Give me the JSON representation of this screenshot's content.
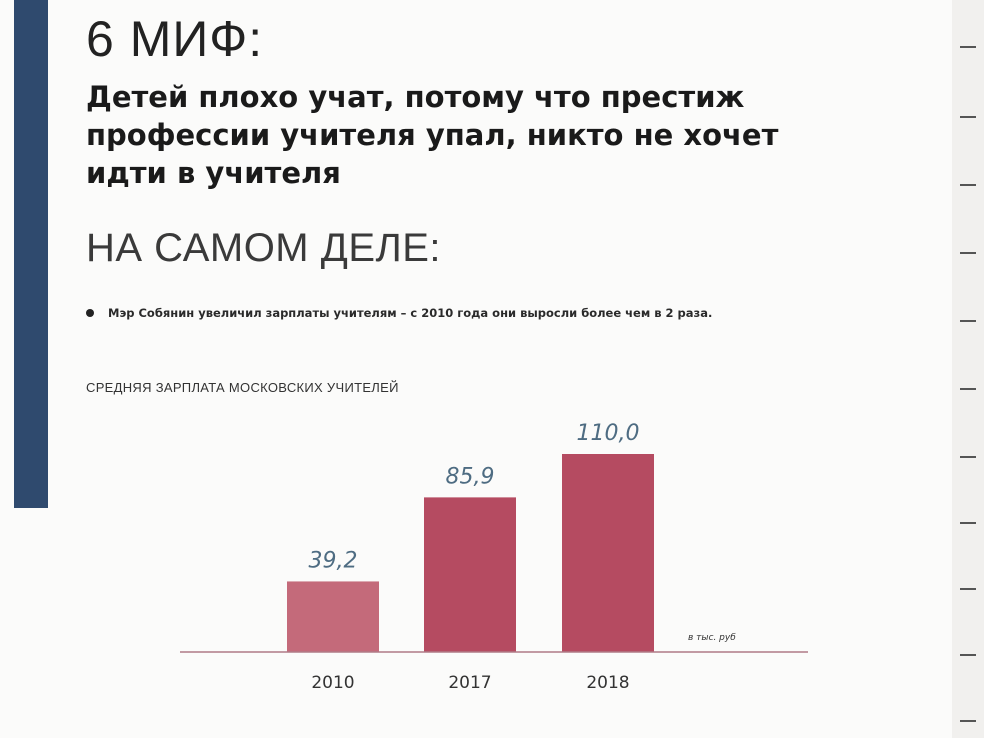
{
  "slide": {
    "myth_title": "6 МИФ:",
    "myth_text": "Детей плохо учат, потому что престиж профессии учителя упал, никто не хочет идти в учителя",
    "reality_heading": "НА САМОМ ДЕЛЕ:",
    "bullet": "Мэр Собянин увеличил зарплаты учителям – с 2010 года они выросли более чем в 2 раза."
  },
  "colors": {
    "side_bar": "#2f4a6e",
    "bar_light": "#c46a7a",
    "bar_dark": "#b54b61",
    "value_label": "#4e6c82",
    "baseline": "#b07a86"
  },
  "chart_data": {
    "type": "bar",
    "title": "СРЕДНЯЯ ЗАРПЛАТА МОСКОВСКИХ УЧИТЕЛЕЙ",
    "categories": [
      "2010",
      "2017",
      "2018"
    ],
    "values": [
      39.2,
      85.9,
      110.0
    ],
    "value_labels": [
      "39,2",
      "85,9",
      "110,0"
    ],
    "unit_note": "в тыс. руб",
    "xlabel": "",
    "ylabel": "",
    "ylim": [
      0,
      110
    ],
    "grid": false,
    "legend": "none"
  }
}
